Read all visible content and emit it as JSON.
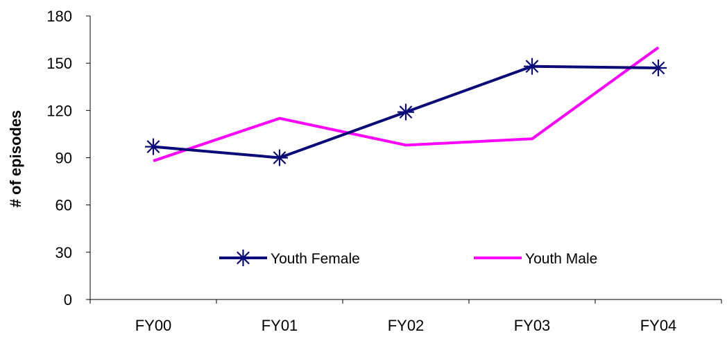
{
  "chart_data": {
    "type": "line",
    "title": "",
    "xlabel": "",
    "ylabel": "# of episodes",
    "categories": [
      "FY00",
      "FY01",
      "FY02",
      "FY03",
      "FY04"
    ],
    "ylim": [
      0,
      180
    ],
    "yticks": [
      0,
      30,
      60,
      90,
      120,
      150,
      180
    ],
    "grid": false,
    "legend_position": "bottom-center inside plot",
    "series": [
      {
        "name": "Youth Female",
        "values": [
          97,
          90,
          119,
          148,
          147
        ],
        "color": "#0a0a78",
        "marker": "asterisk"
      },
      {
        "name": "Youth Male",
        "values": [
          88,
          115,
          98,
          102,
          160
        ],
        "color": "#ff00ff",
        "marker": "none"
      }
    ]
  }
}
